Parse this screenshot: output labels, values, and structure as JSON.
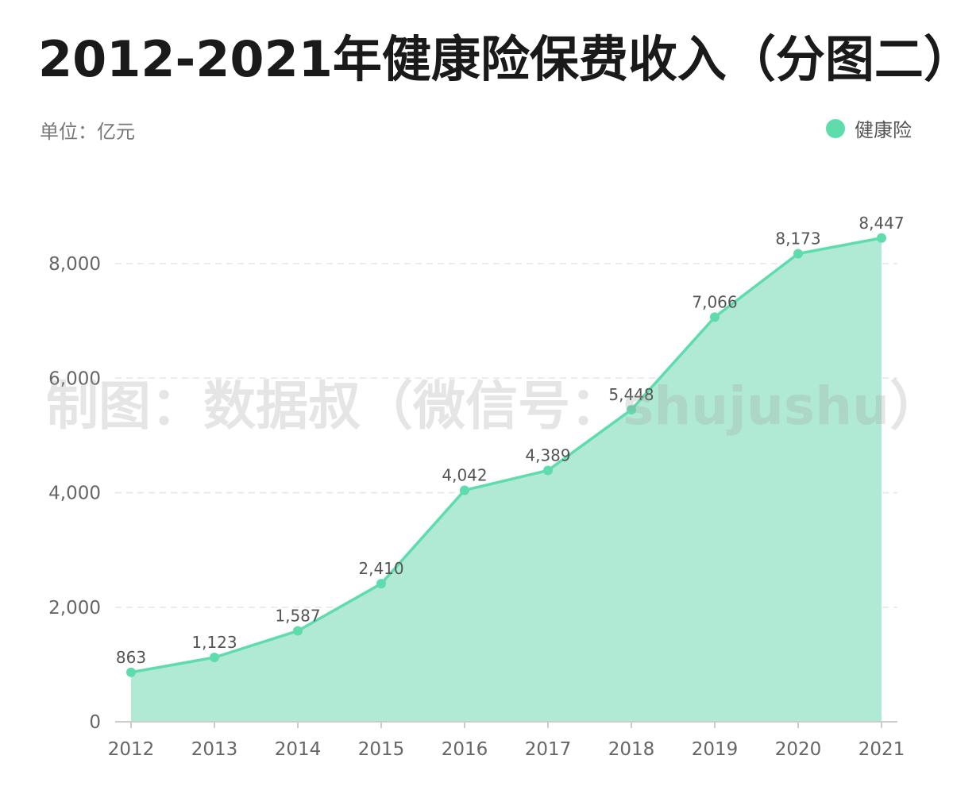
{
  "header": {
    "title": "2012-2021年健康险保费收入（分图二）",
    "unit": "单位：亿元"
  },
  "legend": {
    "label": "健康险",
    "color": "#5fdcac"
  },
  "watermark": {
    "text": "制图：数据叔（微信号：shujushu）"
  },
  "colors": {
    "line": "#5fdcac",
    "area": "#b0ead5",
    "grid": "#e6e6e6",
    "axis": "#cccccc"
  },
  "chart_data": {
    "type": "area",
    "categories": [
      "2012",
      "2013",
      "2014",
      "2015",
      "2016",
      "2017",
      "2018",
      "2019",
      "2020",
      "2021"
    ],
    "series": [
      {
        "name": "健康险",
        "values": [
          863,
          1123,
          1587,
          2410,
          4042,
          4389,
          5448,
          7066,
          8173,
          8447
        ],
        "labels": [
          "863",
          "1,123",
          "1,587",
          "2,410",
          "4,042",
          "4,389",
          "5,448",
          "7,066",
          "8,173",
          "8,447"
        ]
      }
    ],
    "yticks": [
      0,
      2000,
      4000,
      6000,
      8000
    ],
    "ytick_labels": [
      "0",
      "2,000",
      "4,000",
      "6,000",
      "8,000"
    ],
    "ylim": [
      0,
      8500
    ],
    "grid": true,
    "legend_position": "top-right"
  }
}
